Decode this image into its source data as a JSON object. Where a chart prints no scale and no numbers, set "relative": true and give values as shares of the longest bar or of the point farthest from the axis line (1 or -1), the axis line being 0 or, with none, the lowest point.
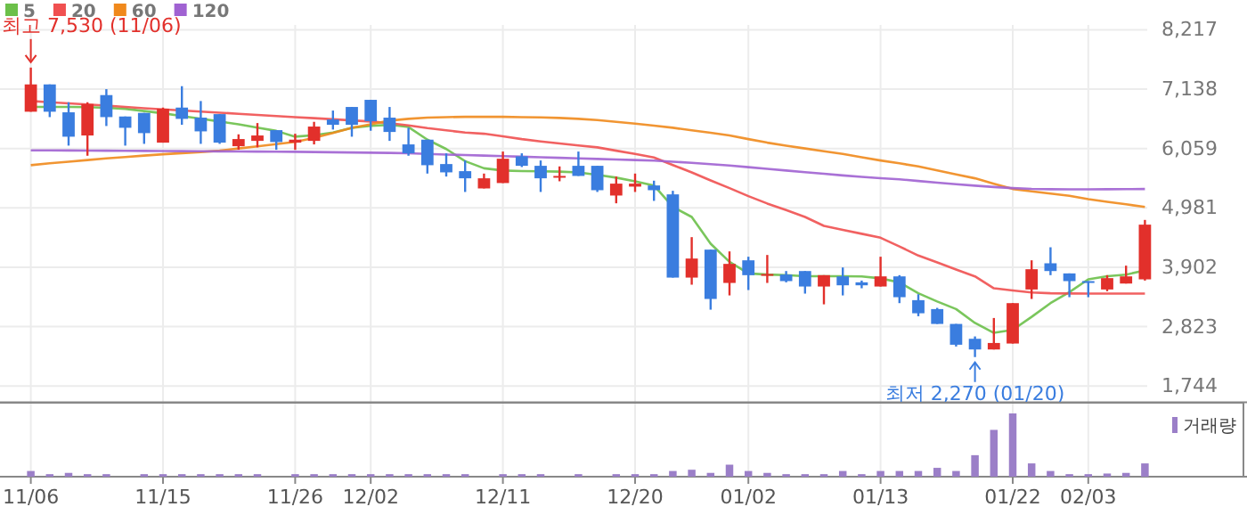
{
  "chart_data": [
    {
      "type": "candlestick",
      "categories": [
        null,
        null,
        null,
        null,
        null,
        null,
        null,
        null,
        null,
        null,
        null,
        null,
        null,
        null,
        null,
        null,
        null,
        null,
        null,
        null,
        null,
        null,
        null,
        null,
        null,
        null,
        null,
        null,
        null,
        null,
        null,
        null,
        null,
        null,
        null,
        null,
        null,
        null,
        null,
        null,
        null,
        null,
        null,
        null,
        null,
        null,
        null,
        null,
        null,
        null,
        null,
        null,
        null,
        null,
        null,
        null,
        null,
        null,
        null,
        null
      ],
      "ohlc": [
        [
          6728,
          7530,
          6728,
          7224
        ],
        [
          7224,
          7224,
          6630,
          6728
        ],
        [
          6717,
          6900,
          6112,
          6274
        ],
        [
          6296,
          6900,
          5928,
          6868
        ],
        [
          7030,
          7138,
          6468,
          6630
        ],
        [
          6641,
          6641,
          6112,
          6436
        ],
        [
          6706,
          6706,
          6144,
          6339
        ],
        [
          6166,
          6803,
          6166,
          6782
        ],
        [
          6803,
          7192,
          6490,
          6598
        ],
        [
          6620,
          6922,
          6144,
          6371
        ],
        [
          6684,
          6684,
          6144,
          6166
        ],
        [
          6101,
          6317,
          6036,
          6231
        ],
        [
          6198,
          6522,
          6080,
          6296
        ],
        [
          6393,
          6393,
          6036,
          6177
        ],
        [
          6166,
          6328,
          6036,
          6220
        ],
        [
          6198,
          6544,
          6134,
          6458
        ],
        [
          6587,
          6749,
          6404,
          6490
        ],
        [
          6814,
          6814,
          6274,
          6490
        ],
        [
          6944,
          6944,
          6382,
          6555
        ],
        [
          6620,
          6814,
          6198,
          6360
        ],
        [
          6134,
          6436,
          5928,
          5972
        ],
        [
          6220,
          6220,
          5604,
          5756
        ],
        [
          5777,
          5972,
          5550,
          5626
        ],
        [
          5648,
          5842,
          5270,
          5518
        ],
        [
          5334,
          5604,
          5334,
          5518
        ],
        [
          5432,
          6004,
          5432,
          5874
        ],
        [
          5918,
          5972,
          5723,
          5745
        ],
        [
          5745,
          5842,
          5270,
          5518
        ],
        [
          5529,
          5734,
          5464,
          5561
        ],
        [
          5745,
          6004,
          5561,
          5561
        ],
        [
          5745,
          5745,
          5270,
          5302
        ],
        [
          5205,
          5550,
          5064,
          5421
        ],
        [
          5367,
          5604,
          5270,
          5421
        ],
        [
          5388,
          5475,
          5108,
          5302
        ],
        [
          5226,
          5291,
          3714,
          3714
        ],
        [
          3714,
          4449,
          3585,
          4060
        ],
        [
          4222,
          4222,
          3131,
          3326
        ],
        [
          3617,
          4190,
          3390,
          3963
        ],
        [
          4028,
          4093,
          3488,
          3758
        ],
        [
          3747,
          4125,
          3617,
          3779
        ],
        [
          3769,
          3833,
          3628,
          3650
        ],
        [
          3833,
          3833,
          3423,
          3552
        ],
        [
          3552,
          3758,
          3228,
          3758
        ],
        [
          3736,
          3898,
          3390,
          3574
        ],
        [
          3628,
          3660,
          3520,
          3574
        ],
        [
          3552,
          4093,
          3552,
          3736
        ],
        [
          3736,
          3758,
          3250,
          3358
        ],
        [
          3304,
          3412,
          3012,
          3066
        ],
        [
          3142,
          3164,
          2872,
          2872
        ],
        [
          2872,
          2872,
          2462,
          2494
        ],
        [
          2602,
          2645,
          2270,
          2408
        ],
        [
          2408,
          2980,
          2408,
          2526
        ],
        [
          2516,
          3250,
          2516,
          3250
        ],
        [
          3498,
          4028,
          3326,
          3866
        ],
        [
          3974,
          4265,
          3758,
          3833
        ],
        [
          3790,
          3790,
          3358,
          3650
        ],
        [
          3650,
          3650,
          3358,
          3617
        ],
        [
          3498,
          3758,
          3466,
          3704
        ],
        [
          3606,
          3931,
          3606,
          3736
        ],
        [
          3682,
          4762,
          3660,
          4676
        ]
      ],
      "colors": [
        "#e2302b",
        "#3a7ddf",
        "#3a7ddf",
        "#e2302b",
        "#3a7ddf",
        "#3a7ddf",
        "#3a7ddf",
        "#e2302b",
        "#3a7ddf",
        "#3a7ddf",
        "#3a7ddf",
        "#e2302b",
        "#e2302b",
        "#3a7ddf",
        "#e2302b",
        "#e2302b",
        "#3a7ddf",
        "#3a7ddf",
        "#3a7ddf",
        "#3a7ddf",
        "#3a7ddf",
        "#3a7ddf",
        "#3a7ddf",
        "#3a7ddf",
        "#e2302b",
        "#e2302b",
        "#3a7ddf",
        "#3a7ddf",
        "#e2302b",
        "#3a7ddf",
        "#3a7ddf",
        "#e2302b",
        "#e2302b",
        "#3a7ddf",
        "#3a7ddf",
        "#e2302b",
        "#3a7ddf",
        "#e2302b",
        "#3a7ddf",
        "#e2302b",
        "#3a7ddf",
        "#3a7ddf",
        "#e2302b",
        "#3a7ddf",
        "#3a7ddf",
        "#e2302b",
        "#3a7ddf",
        "#3a7ddf",
        "#3a7ddf",
        "#3a7ddf",
        "#3a7ddf",
        "#e2302b",
        "#e2302b",
        "#e2302b",
        "#3a7ddf",
        "#3a7ddf",
        "#3a7ddf",
        "#e2302b",
        "#e2302b",
        "#e2302b"
      ],
      "series": [
        {
          "name": "5",
          "type": "line",
          "color": "#6cc04a",
          "values": [
            6814,
            6814,
            6814,
            6810,
            6800,
            6780,
            6740,
            6700,
            6650,
            6600,
            6550,
            6500,
            6440,
            6380,
            6274,
            6300,
            6350,
            6436,
            6470,
            6490,
            6450,
            6220,
            6050,
            5830,
            5700,
            5660,
            5650,
            5645,
            5640,
            5626,
            5580,
            5530,
            5464,
            5388,
            5000,
            4816,
            4330,
            4000,
            3790,
            3770,
            3760,
            3740,
            3740,
            3738,
            3736,
            3700,
            3628,
            3430,
            3280,
            3142,
            2890,
            2710,
            2764,
            3000,
            3250,
            3450,
            3682,
            3740,
            3768,
            3844
          ]
        },
        {
          "name": "20",
          "type": "line",
          "color": "#f05050",
          "values": [
            6922,
            6900,
            6880,
            6860,
            6840,
            6814,
            6790,
            6770,
            6750,
            6730,
            6710,
            6690,
            6670,
            6650,
            6630,
            6610,
            6590,
            6570,
            6550,
            6520,
            6480,
            6430,
            6390,
            6350,
            6328,
            6280,
            6230,
            6188,
            6150,
            6115,
            6080,
            6020,
            5960,
            5896,
            5760,
            5626,
            5480,
            5340,
            5194,
            5060,
            4940,
            4816,
            4654,
            4580,
            4510,
            4438,
            4280,
            4114,
            3990,
            3860,
            3736,
            3520,
            3480,
            3444,
            3430,
            3425,
            3423,
            3423,
            3423,
            3423
          ]
        },
        {
          "name": "60",
          "type": "line",
          "color": "#f0891c",
          "values": [
            5756,
            5790,
            5820,
            5850,
            5880,
            5905,
            5930,
            5955,
            5975,
            5995,
            6020,
            6060,
            6100,
            6140,
            6180,
            6252,
            6340,
            6436,
            6500,
            6566,
            6598,
            6620,
            6630,
            6635,
            6635,
            6635,
            6630,
            6625,
            6615,
            6598,
            6575,
            6545,
            6512,
            6475,
            6436,
            6390,
            6345,
            6296,
            6230,
            6166,
            6110,
            6060,
            6010,
            5960,
            5900,
            5842,
            5790,
            5734,
            5660,
            5590,
            5518,
            5420,
            5324,
            5280,
            5240,
            5200,
            5140,
            5090,
            5045,
            4999
          ]
        },
        {
          "name": "120",
          "type": "line",
          "color": "#a062d2",
          "values": [
            6026,
            6025,
            6024,
            6022,
            6020,
            6018,
            6016,
            6014,
            6012,
            6010,
            6008,
            6006,
            6004,
            6002,
            6000,
            5996,
            5992,
            5988,
            5984,
            5980,
            5972,
            5962,
            5950,
            5940,
            5930,
            5920,
            5910,
            5900,
            5890,
            5880,
            5870,
            5860,
            5850,
            5840,
            5820,
            5800,
            5775,
            5750,
            5720,
            5690,
            5660,
            5630,
            5600,
            5570,
            5545,
            5520,
            5500,
            5470,
            5440,
            5410,
            5385,
            5360,
            5340,
            5325,
            5320,
            5318,
            5318,
            5320,
            5322,
            5324
          ]
        }
      ],
      "ylim": [
        1450,
        8217
      ],
      "yticks": [
        {
          "value": 1744,
          "label": "1,744"
        },
        {
          "value": 2823,
          "label": "2,823"
        },
        {
          "value": 3902,
          "label": "3,902"
        },
        {
          "value": 4981,
          "label": "4,981"
        },
        {
          "value": 6059,
          "label": "6,059"
        },
        {
          "value": 7138,
          "label": "7,138"
        },
        {
          "value": 8217,
          "label": "8,217"
        }
      ],
      "grid": true,
      "legend": "top left",
      "tick_labels": "y",
      "annotations": [
        "최고 7,530 (11/06)",
        "최저 2,270 (01/20)"
      ]
    },
    {
      "type": "bar",
      "relative": true,
      "categories": [
        "11/06",
        null,
        null,
        null,
        null,
        null,
        null,
        "11/15",
        null,
        null,
        null,
        null,
        null,
        null,
        "11/26",
        null,
        null,
        null,
        "12/02",
        null,
        null,
        null,
        null,
        null,
        null,
        "12/11",
        null,
        null,
        null,
        null,
        null,
        null,
        "12/20",
        null,
        null,
        null,
        null,
        null,
        "01/02",
        null,
        null,
        null,
        null,
        null,
        null,
        "01/13",
        null,
        null,
        null,
        null,
        null,
        null,
        "01/22",
        null,
        null,
        null,
        "02/03",
        null,
        null,
        null
      ],
      "series": [
        {
          "name": "거래량",
          "color": "#9b7fc8",
          "values": [
            0.09,
            0.04,
            0.06,
            0.04,
            0.04,
            null,
            0.04,
            0.04,
            0.04,
            0.04,
            0.04,
            0.04,
            0.04,
            null,
            0.04,
            0.04,
            0.04,
            0.04,
            0.04,
            0.04,
            0.04,
            0.04,
            0.04,
            0.04,
            null,
            0.04,
            0.04,
            0.04,
            null,
            0.04,
            null,
            0.04,
            0.04,
            0.04,
            0.09,
            0.11,
            0.06,
            0.19,
            0.09,
            0.06,
            0.04,
            0.04,
            0.04,
            0.09,
            0.04,
            0.09,
            0.09,
            0.09,
            0.14,
            0.09,
            0.34,
            0.74,
            1,
            0.21,
            0.09,
            0.04,
            0.04,
            0.05,
            0.06,
            0.21
          ]
        }
      ],
      "legend": "top right",
      "tick_labels": "x",
      "grid": "x"
    }
  ]
}
